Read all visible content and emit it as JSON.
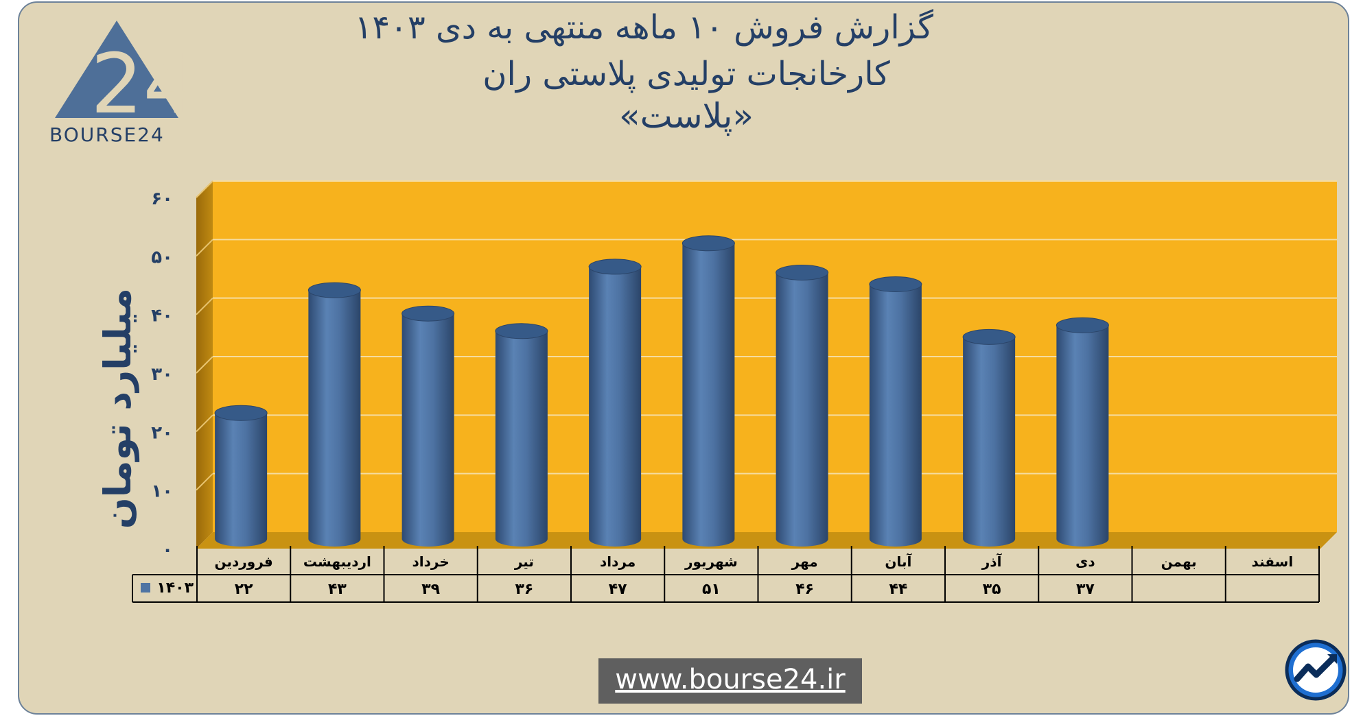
{
  "header": {
    "title_line1": "گزارش  فروش ۱۰ ماهه منتهی به دی ۱۴۰۳",
    "title_line2": "کارخانجات تولیدی پلاستی ران",
    "title_line3": "«پلاست»"
  },
  "logo": {
    "text": "BOURSE24",
    "mark": "24"
  },
  "footer": {
    "url": "www.bourse24.ir"
  },
  "colors": {
    "background": "#e0d5b7",
    "plot_area": "#f7b21d",
    "bar": "#4f74a3",
    "text": "#243f66"
  },
  "icons": {
    "corner": "bourse24-trend-icon"
  },
  "chart_data": {
    "type": "bar",
    "ylabel": "میلیارد تومان",
    "ylim": [
      0,
      60
    ],
    "yticks": [
      "۰",
      "۱۰",
      "۲۰",
      "۳۰",
      "۴۰",
      "۵۰",
      "۶۰"
    ],
    "categories": [
      "فروردین",
      "اردیبهشت",
      "خرداد",
      "تیر",
      "مرداد",
      "شهریور",
      "مهر",
      "آبان",
      "آذر",
      "دی",
      "بهمن",
      "اسفند"
    ],
    "series": [
      {
        "name": "۱۴۰۳",
        "values": [
          22,
          43,
          39,
          36,
          47,
          51,
          46,
          44,
          35,
          37,
          null,
          null
        ],
        "value_labels": [
          "۲۲",
          "۴۳",
          "۳۹",
          "۳۶",
          "۴۷",
          "۵۱",
          "۴۶",
          "۴۴",
          "۳۵",
          "۳۷",
          "",
          ""
        ]
      }
    ],
    "grid": true,
    "legend": "data-table"
  }
}
